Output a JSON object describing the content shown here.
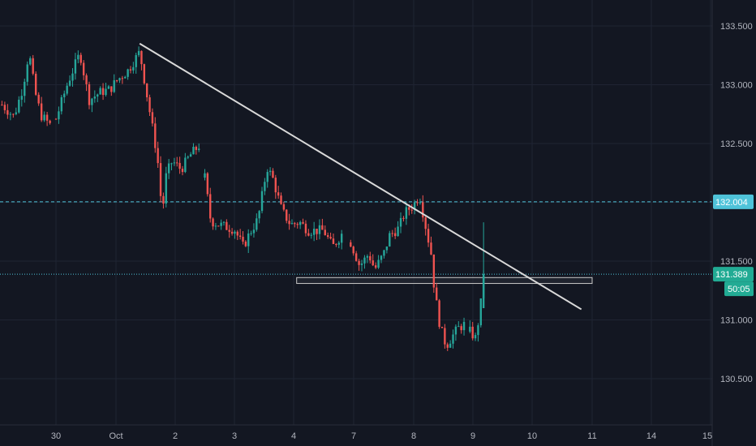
{
  "chart_data": {
    "type": "candlestick",
    "colors": {
      "background": "#131722",
      "grid": "#1f2433",
      "up": "#26a69a",
      "down": "#ef5350",
      "level_line": "#4fc3d9",
      "trendline": "#d9d9d9",
      "zone": "#9e9e9e",
      "tick_text": "#b2b5be"
    },
    "y_ticks": [
      "133.500",
      "133.000",
      "132.500",
      "132.000",
      "131.500",
      "131.000",
      "130.500"
    ],
    "x_ticks": [
      "30",
      "Oct",
      "2",
      "3",
      "4",
      "7",
      "8",
      "9",
      "10",
      "11",
      "14",
      "15"
    ],
    "price_levels": [
      {
        "label": "132.004",
        "value": 132.004,
        "style": "dashed"
      },
      {
        "label": "131.389",
        "value": 131.389,
        "style": "dotted",
        "countdown": "50:05"
      }
    ],
    "trendline": {
      "from": {
        "x": 1.4,
        "y": 133.35
      },
      "to": {
        "x": 8.82,
        "y": 131.09
      }
    },
    "support_zone": {
      "x_from": 4.05,
      "x_to": 9.0,
      "y_low": 131.31,
      "y_high": 131.36
    },
    "segments": [
      {
        "points": [
          [
            -0.9,
            132.83
          ],
          [
            -0.7,
            132.73
          ],
          [
            -0.55,
            132.98
          ],
          [
            -0.45,
            133.28
          ],
          [
            -0.35,
            132.94
          ],
          [
            -0.25,
            132.74
          ],
          [
            -0.1,
            132.66
          ]
        ]
      },
      {
        "points": [
          [
            0.0,
            132.71
          ],
          [
            0.2,
            133.02
          ],
          [
            0.4,
            133.27
          ],
          [
            0.55,
            132.87
          ],
          [
            0.75,
            132.94
          ],
          [
            0.9,
            132.96
          ],
          [
            1.0,
            133.03
          ],
          [
            1.2,
            133.12
          ],
          [
            1.4,
            133.28
          ],
          [
            1.58,
            132.74
          ],
          [
            1.7,
            132.38
          ],
          [
            1.78,
            131.9
          ],
          [
            1.85,
            132.24
          ],
          [
            1.95,
            132.35
          ],
          [
            2.1,
            132.28
          ],
          [
            2.25,
            132.4
          ],
          [
            2.4,
            132.48
          ]
        ]
      },
      {
        "points": [
          [
            2.5,
            132.21
          ],
          [
            2.6,
            131.84
          ],
          [
            2.8,
            131.8
          ],
          [
            3.0,
            131.77
          ],
          [
            3.15,
            131.62
          ],
          [
            3.25,
            131.73
          ],
          [
            3.4,
            131.86
          ],
          [
            3.55,
            132.3
          ],
          [
            3.65,
            132.2
          ],
          [
            3.8,
            131.93
          ],
          [
            3.95,
            131.81
          ],
          [
            4.1,
            131.83
          ],
          [
            4.25,
            131.76
          ],
          [
            4.5,
            131.76
          ],
          [
            4.65,
            131.62
          ],
          [
            4.8,
            131.73
          ]
        ]
      },
      {
        "points": [
          [
            4.95,
            131.66
          ],
          [
            5.1,
            131.46
          ],
          [
            5.25,
            131.56
          ],
          [
            5.35,
            131.43
          ],
          [
            5.5,
            131.56
          ],
          [
            5.6,
            131.72
          ],
          [
            5.75,
            131.78
          ],
          [
            5.85,
            131.91
          ],
          [
            6.0,
            131.98
          ],
          [
            6.1,
            132.06
          ],
          [
            6.18,
            131.85
          ],
          [
            6.3,
            131.55
          ],
          [
            6.35,
            131.25
          ],
          [
            6.45,
            130.93
          ],
          [
            6.55,
            130.78
          ],
          [
            6.65,
            130.86
          ],
          [
            6.75,
            130.93
          ],
          [
            6.85,
            130.96
          ]
        ]
      },
      {
        "points": [
          [
            6.95,
            130.9
          ],
          [
            7.05,
            130.84
          ],
          [
            7.15,
            131.2
          ],
          [
            7.18,
            131.389
          ]
        ]
      }
    ]
  }
}
